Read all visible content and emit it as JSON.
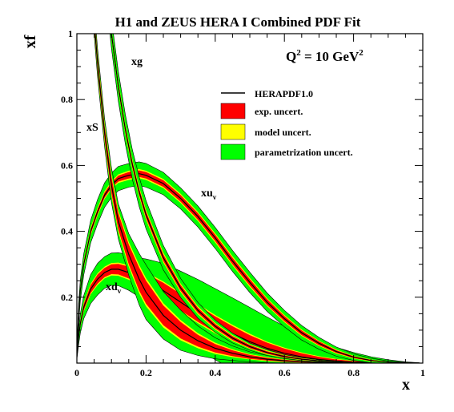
{
  "chart_data": {
    "type": "area",
    "title": "H1 and ZEUS HERA I Combined PDF Fit",
    "annotation": {
      "prefix": "Q",
      "exponent": "2",
      "middle": " = 10 GeV",
      "unit_exponent": "2"
    },
    "xlabel": "x",
    "ylabel": "xf",
    "xlim": [
      0,
      1
    ],
    "ylim": [
      0,
      1
    ],
    "x_ticks": [
      "0",
      "0.2",
      "0.4",
      "0.6",
      "0.8",
      "1"
    ],
    "y_ticks": [
      "0.2",
      "0.4",
      "0.6",
      "0.8",
      "1"
    ],
    "legend": {
      "placement": "top-right",
      "entries": [
        {
          "label": "HERAPDF1.0",
          "style": "line",
          "color": "#000000"
        },
        {
          "label": "exp. uncert.",
          "style": "box",
          "color": "#ff0000"
        },
        {
          "label": "model uncert.",
          "style": "box",
          "color": "#ffff00"
        },
        {
          "label": "parametrization uncert.",
          "style": "box",
          "color": "#00ff00"
        }
      ]
    },
    "colors": {
      "exp": "#ff0000",
      "model": "#ffff00",
      "param": "#00ff00",
      "central": "#000000"
    },
    "series": [
      {
        "name": "xu_v",
        "label_main": "xu",
        "label_sub": "v",
        "x": [
          0.0001,
          0.005,
          0.01,
          0.02,
          0.04,
          0.06,
          0.08,
          0.1,
          0.12,
          0.15,
          0.18,
          0.2,
          0.25,
          0.3,
          0.35,
          0.4,
          0.45,
          0.5,
          0.55,
          0.6,
          0.65,
          0.7,
          0.75,
          0.8,
          0.85,
          0.9,
          0.95,
          0.99
        ],
        "central": [
          0.03,
          0.15,
          0.22,
          0.3,
          0.4,
          0.46,
          0.51,
          0.54,
          0.56,
          0.57,
          0.575,
          0.57,
          0.545,
          0.5,
          0.445,
          0.38,
          0.31,
          0.245,
          0.185,
          0.135,
          0.092,
          0.06,
          0.035,
          0.018,
          0.008,
          0.003,
          0.0008,
          0.0001
        ],
        "exp": [
          0.004,
          0.008,
          0.008,
          0.008,
          0.008,
          0.008,
          0.008,
          0.008,
          0.009,
          0.01,
          0.01,
          0.01,
          0.01,
          0.01,
          0.01,
          0.01,
          0.01,
          0.01,
          0.009,
          0.008,
          0.007,
          0.006,
          0.004,
          0.003,
          0.002,
          0.001,
          0.0005,
          0.0002
        ],
        "model_extra": [
          0.002,
          0.004,
          0.004,
          0.004,
          0.004,
          0.004,
          0.004,
          0.004,
          0.004,
          0.004,
          0.004,
          0.004,
          0.004,
          0.004,
          0.004,
          0.004,
          0.004,
          0.004,
          0.003,
          0.003,
          0.003,
          0.002,
          0.002,
          0.001,
          0.001,
          0.0005,
          0.0003,
          0.0001
        ],
        "param_extra": [
          0.004,
          0.02,
          0.02,
          0.02,
          0.022,
          0.025,
          0.025,
          0.025,
          0.024,
          0.022,
          0.022,
          0.022,
          0.02,
          0.018,
          0.018,
          0.018,
          0.018,
          0.017,
          0.016,
          0.014,
          0.012,
          0.01,
          0.008,
          0.006,
          0.004,
          0.002,
          0.001,
          0.0002
        ]
      },
      {
        "name": "xd_v",
        "label_main": "xd",
        "label_sub": "v",
        "x": [
          0.0001,
          0.005,
          0.01,
          0.02,
          0.04,
          0.06,
          0.08,
          0.1,
          0.12,
          0.15,
          0.18,
          0.2,
          0.25,
          0.3,
          0.35,
          0.4,
          0.45,
          0.5,
          0.55,
          0.6,
          0.65,
          0.7,
          0.75,
          0.8,
          0.85,
          0.9,
          0.95,
          0.99
        ],
        "central": [
          0.02,
          0.08,
          0.12,
          0.17,
          0.225,
          0.255,
          0.275,
          0.285,
          0.285,
          0.275,
          0.26,
          0.25,
          0.22,
          0.185,
          0.15,
          0.118,
          0.09,
          0.065,
          0.045,
          0.03,
          0.019,
          0.011,
          0.006,
          0.003,
          0.0015,
          0.0006,
          0.0002,
          5e-05
        ],
        "exp": [
          0.003,
          0.006,
          0.008,
          0.01,
          0.012,
          0.014,
          0.014,
          0.015,
          0.016,
          0.018,
          0.02,
          0.022,
          0.024,
          0.025,
          0.025,
          0.024,
          0.022,
          0.02,
          0.017,
          0.014,
          0.011,
          0.008,
          0.005,
          0.003,
          0.002,
          0.001,
          0.0004,
          0.0001
        ],
        "model_extra": [
          0.002,
          0.003,
          0.003,
          0.003,
          0.004,
          0.004,
          0.004,
          0.004,
          0.004,
          0.004,
          0.004,
          0.004,
          0.004,
          0.004,
          0.004,
          0.004,
          0.004,
          0.004,
          0.003,
          0.003,
          0.002,
          0.002,
          0.002,
          0.001,
          0.001,
          0.0005,
          0.0003,
          0.0001
        ],
        "param_extra": [
          0.004,
          0.015,
          0.018,
          0.022,
          0.028,
          0.03,
          0.03,
          0.03,
          0.03,
          0.032,
          0.035,
          0.04,
          0.055,
          0.065,
          0.075,
          0.08,
          0.082,
          0.08,
          0.075,
          0.065,
          0.055,
          0.045,
          0.035,
          0.025,
          0.015,
          0.008,
          0.003,
          0.001
        ]
      },
      {
        "name": "xS",
        "label_main": "xS",
        "label_sub": "",
        "x": [
          0.05,
          0.06,
          0.08,
          0.1,
          0.12,
          0.15,
          0.18,
          0.2,
          0.25,
          0.3,
          0.35,
          0.4,
          0.45,
          0.5,
          0.55,
          0.6,
          0.65,
          0.7,
          0.75,
          0.8
        ],
        "central": [
          1.04,
          0.91,
          0.7,
          0.54,
          0.43,
          0.33,
          0.255,
          0.215,
          0.145,
          0.1,
          0.068,
          0.045,
          0.03,
          0.019,
          0.012,
          0.007,
          0.004,
          0.002,
          0.001,
          0.0005
        ],
        "exp": [
          0.02,
          0.02,
          0.02,
          0.025,
          0.025,
          0.03,
          0.035,
          0.035,
          0.03,
          0.025,
          0.018,
          0.013,
          0.009,
          0.006,
          0.004,
          0.003,
          0.002,
          0.001,
          0.0005,
          0.0003
        ],
        "model_extra": [
          0.008,
          0.008,
          0.008,
          0.008,
          0.008,
          0.008,
          0.008,
          0.008,
          0.007,
          0.006,
          0.005,
          0.004,
          0.003,
          0.002,
          0.002,
          0.001,
          0.001,
          0.0005,
          0.0003,
          0.0002
        ],
        "param_extra": [
          0.015,
          0.015,
          0.015,
          0.02,
          0.02,
          0.025,
          0.035,
          0.04,
          0.035,
          0.03,
          0.022,
          0.015,
          0.01,
          0.007,
          0.005,
          0.003,
          0.002,
          0.001,
          0.0005,
          0.0003
        ]
      },
      {
        "name": "xg",
        "label_main": "xg",
        "label_sub": "",
        "x": [
          0.05,
          0.07,
          0.09,
          0.1,
          0.12,
          0.14,
          0.16,
          0.18,
          0.2,
          0.25,
          0.3,
          0.35,
          0.4,
          0.45,
          0.5,
          0.55,
          0.6,
          0.65,
          0.7,
          0.75,
          0.8
        ],
        "central": [
          1.7,
          1.35,
          1.1,
          1.0,
          0.84,
          0.71,
          0.605,
          0.52,
          0.45,
          0.32,
          0.228,
          0.16,
          0.112,
          0.076,
          0.05,
          0.032,
          0.02,
          0.012,
          0.007,
          0.004,
          0.002
        ],
        "exp": [
          0.01,
          0.01,
          0.01,
          0.01,
          0.01,
          0.01,
          0.01,
          0.01,
          0.01,
          0.01,
          0.009,
          0.008,
          0.007,
          0.006,
          0.005,
          0.004,
          0.003,
          0.002,
          0.001,
          0.0008,
          0.0005
        ],
        "model_extra": [
          0.005,
          0.005,
          0.005,
          0.005,
          0.005,
          0.005,
          0.005,
          0.005,
          0.005,
          0.005,
          0.004,
          0.004,
          0.003,
          0.003,
          0.002,
          0.002,
          0.001,
          0.001,
          0.0008,
          0.0005,
          0.0003
        ],
        "param_extra": [
          0.03,
          0.03,
          0.03,
          0.03,
          0.03,
          0.03,
          0.03,
          0.03,
          0.028,
          0.022,
          0.016,
          0.012,
          0.009,
          0.006,
          0.004,
          0.003,
          0.002,
          0.0015,
          0.001,
          0.0006,
          0.0003
        ]
      }
    ]
  }
}
